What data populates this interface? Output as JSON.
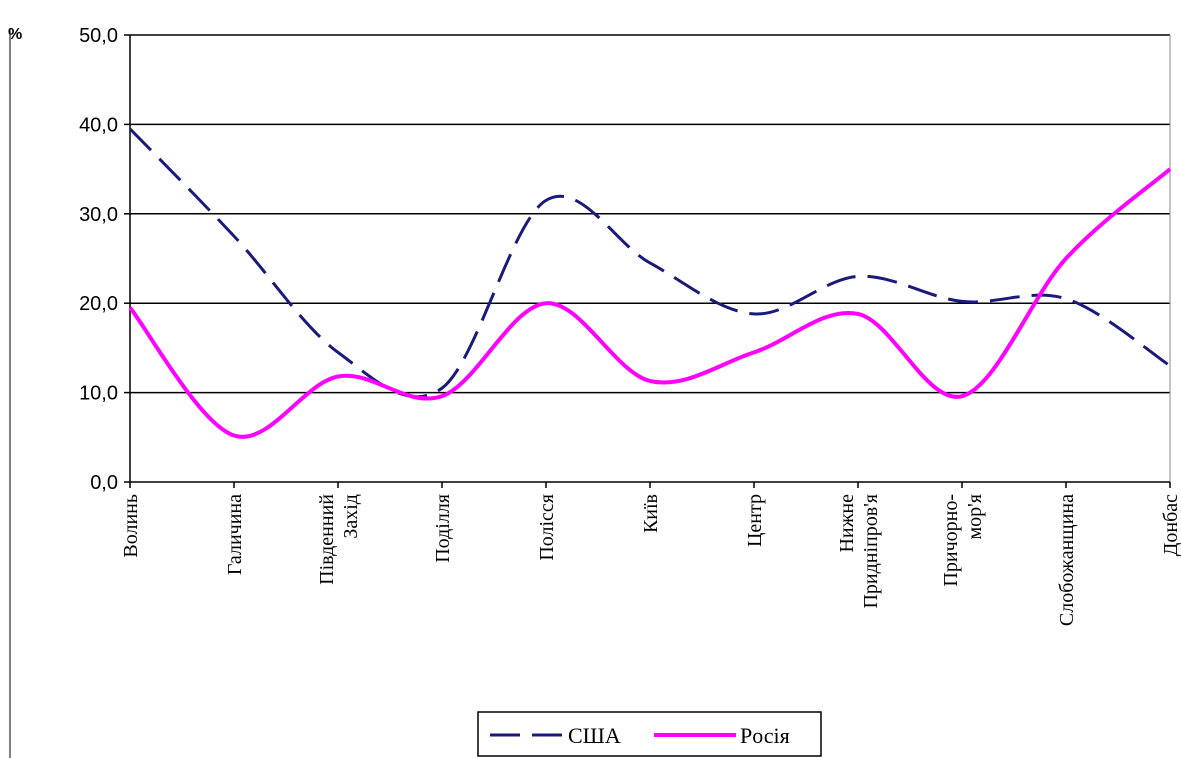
{
  "chart_data": {
    "type": "line",
    "unit_label": "%",
    "categories": [
      [
        "Волинь"
      ],
      [
        "Галичина"
      ],
      [
        "Південний",
        "Захід"
      ],
      [
        "Поділля"
      ],
      [
        "Полісся"
      ],
      [
        "Київ"
      ],
      [
        "Центр"
      ],
      [
        "Нижне",
        "Придніпров'я"
      ],
      [
        "Причорно-",
        "мор'я"
      ],
      [
        "Слобожанщина"
      ],
      [
        "Донбас"
      ]
    ],
    "series": [
      {
        "name": "США",
        "values": [
          39.5,
          27.5,
          14.5,
          10.5,
          31.5,
          24.5,
          18.8,
          23.0,
          20.2,
          20.5,
          13.0
        ],
        "color": "#1a1a7a",
        "style": "dashed"
      },
      {
        "name": "Pосія",
        "values": [
          19.5,
          5.2,
          11.8,
          9.6,
          20.0,
          11.3,
          14.5,
          18.8,
          9.6,
          25.0,
          35.0
        ],
        "color": "#ff00ff",
        "style": "solid"
      }
    ],
    "yticks": [
      "0,0",
      "10,0",
      "20,0",
      "30,0",
      "40,0",
      "50,0"
    ],
    "ylim": [
      0,
      50
    ],
    "grid": true,
    "legend_position": "bottom-center"
  }
}
